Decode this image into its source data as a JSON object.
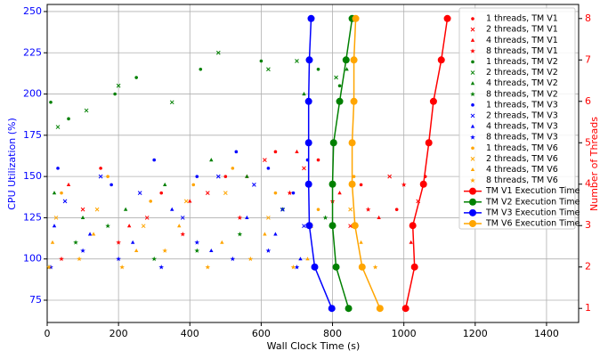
{
  "chart_data": {
    "type": "scatter",
    "xlabel": "Wall Clock Time (s)",
    "ylabel": "CPU Utilization (%)",
    "y2label": "Number of Threads",
    "xlim": [
      0,
      1490
    ],
    "xticks": [
      0,
      200,
      400,
      600,
      800,
      1000,
      1200,
      1400
    ],
    "ylim": [
      61.5,
      254.3
    ],
    "yticks": [
      75,
      100,
      125,
      150,
      175,
      200,
      225,
      250
    ],
    "y2lim": [
      0.66,
      8.34
    ],
    "y2ticks": [
      1,
      2,
      3,
      4,
      5,
      6,
      7,
      8
    ],
    "grid": true,
    "legend": "upper right",
    "series": [
      {
        "name": "1 threads, TM V1",
        "color": "red",
        "marker": "o",
        "x": [
          150,
          320,
          500,
          640,
          760,
          880,
          980,
          1060
        ],
        "values": [
          155,
          140,
          150,
          165,
          160,
          145,
          130,
          150
        ]
      },
      {
        "name": "2 threads, TM V1",
        "color": "red",
        "marker": "x",
        "x": [
          100,
          280,
          450,
          610,
          720,
          850,
          960,
          1040
        ],
        "values": [
          130,
          125,
          140,
          160,
          155,
          120,
          150,
          135
        ]
      },
      {
        "name": "4 threads, TM V1",
        "color": "red",
        "marker": "^",
        "x": [
          60,
          230,
          400,
          560,
          700,
          820,
          930,
          1020
        ],
        "values": [
          145,
          120,
          135,
          150,
          165,
          140,
          125,
          110
        ]
      },
      {
        "name": "8 threads, TM V1",
        "color": "red",
        "marker": "*",
        "x": [
          40,
          200,
          380,
          540,
          680,
          800,
          900,
          1000
        ],
        "values": [
          100,
          110,
          115,
          125,
          140,
          135,
          130,
          145
        ]
      },
      {
        "name": "1 threads, TM V2",
        "color": "green",
        "marker": "o",
        "x": [
          10,
          60,
          190,
          250,
          430,
          600,
          760,
          820
        ],
        "values": [
          195,
          185,
          200,
          210,
          215,
          220,
          215,
          205
        ]
      },
      {
        "name": "2 threads, TM V2",
        "color": "green",
        "marker": "x",
        "x": [
          30,
          110,
          200,
          350,
          480,
          620,
          700,
          810
        ],
        "values": [
          180,
          190,
          205,
          195,
          225,
          215,
          220,
          210
        ]
      },
      {
        "name": "4 threads, TM V2",
        "color": "green",
        "marker": "^",
        "x": [
          20,
          100,
          220,
          330,
          460,
          560,
          720,
          840
        ],
        "values": [
          140,
          125,
          130,
          145,
          160,
          150,
          200,
          215
        ]
      },
      {
        "name": "8 threads, TM V2",
        "color": "green",
        "marker": "*",
        "x": [
          5,
          80,
          170,
          300,
          420,
          540,
          660,
          780
        ],
        "values": [
          95,
          110,
          120,
          100,
          105,
          115,
          130,
          125
        ]
      },
      {
        "name": "1 threads, TM V3",
        "color": "blue",
        "marker": "o",
        "x": [
          30,
          180,
          300,
          420,
          530,
          620,
          690,
          730
        ],
        "values": [
          155,
          145,
          160,
          150,
          165,
          155,
          140,
          160
        ]
      },
      {
        "name": "2 threads, TM V3",
        "color": "blue",
        "marker": "x",
        "x": [
          50,
          150,
          260,
          380,
          480,
          580,
          660,
          720
        ],
        "values": [
          135,
          150,
          140,
          125,
          150,
          145,
          130,
          120
        ]
      },
      {
        "name": "4 threads, TM V3",
        "color": "blue",
        "marker": "^",
        "x": [
          20,
          120,
          240,
          350,
          460,
          560,
          640,
          710
        ],
        "values": [
          120,
          115,
          110,
          130,
          105,
          125,
          115,
          100
        ]
      },
      {
        "name": "8 threads, TM V3",
        "color": "blue",
        "marker": "*",
        "x": [
          10,
          100,
          200,
          320,
          420,
          520,
          620,
          700
        ],
        "values": [
          95,
          105,
          100,
          95,
          110,
          100,
          105,
          95
        ]
      },
      {
        "name": "1 threads, TM V6",
        "color": "orange",
        "marker": "o",
        "x": [
          40,
          170,
          290,
          410,
          520,
          640,
          760,
          860
        ],
        "values": [
          140,
          150,
          135,
          145,
          155,
          140,
          130,
          150
        ]
      },
      {
        "name": "2 threads, TM V6",
        "color": "orange",
        "marker": "x",
        "x": [
          25,
          140,
          270,
          390,
          500,
          620,
          740,
          850
        ],
        "values": [
          125,
          130,
          120,
          135,
          140,
          125,
          120,
          130
        ]
      },
      {
        "name": "4 threads, TM V6",
        "color": "orange",
        "marker": "^",
        "x": [
          15,
          130,
          250,
          370,
          490,
          610,
          730,
          880
        ],
        "values": [
          110,
          115,
          105,
          120,
          110,
          115,
          100,
          110
        ]
      },
      {
        "name": "8 threads, TM V6",
        "color": "orange",
        "marker": "*",
        "x": [
          5,
          90,
          210,
          330,
          450,
          570,
          690,
          920
        ],
        "values": [
          95,
          100,
          95,
          105,
          95,
          100,
          95,
          95
        ]
      },
      {
        "name": "TM V1 Execution Time",
        "color": "red",
        "axis": "y2",
        "x": [
          1005,
          1030,
          1025,
          1055,
          1070,
          1083,
          1105,
          1122
        ],
        "values": [
          1,
          2,
          3,
          4,
          5,
          6,
          7,
          8
        ]
      },
      {
        "name": "TM V2 Execution Time",
        "color": "green",
        "axis": "y2",
        "x": [
          845,
          810,
          800,
          800,
          803,
          820,
          838,
          855
        ],
        "values": [
          1,
          2,
          3,
          4,
          5,
          6,
          7,
          8
        ]
      },
      {
        "name": "TM V3 Execution Time",
        "color": "blue",
        "axis": "y2",
        "x": [
          798,
          750,
          735,
          733,
          733,
          733,
          735,
          740
        ],
        "values": [
          1,
          2,
          3,
          4,
          5,
          6,
          7,
          8
        ]
      },
      {
        "name": "TM V6 Execution Time",
        "color": "orange",
        "axis": "y2",
        "x": [
          933,
          883,
          863,
          855,
          855,
          860,
          860,
          865
        ],
        "values": [
          1,
          2,
          3,
          4,
          5,
          6,
          7,
          8
        ]
      }
    ]
  }
}
